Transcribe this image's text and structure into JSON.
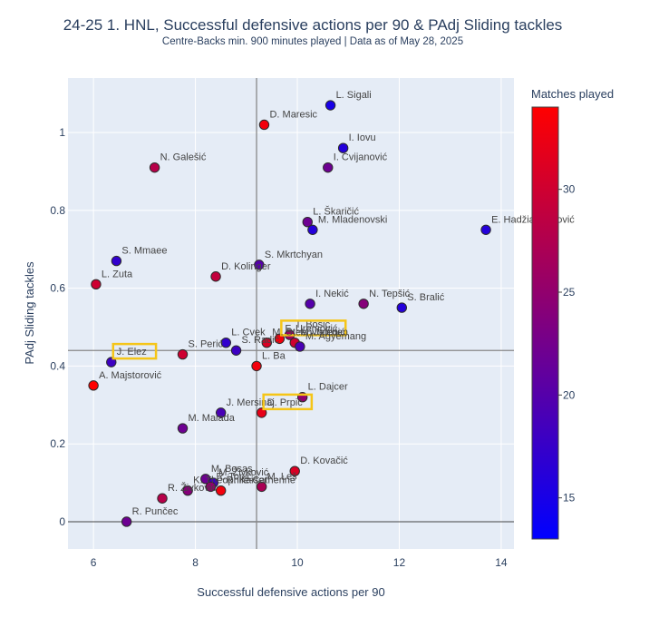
{
  "chart_data": {
    "type": "scatter",
    "title": "24-25 1. HNL, Successful defensive actions per 90 & PAdj Sliding tackles",
    "subtitle": "Centre-Backs min. 900 minutes played | Data as of May 28, 2025",
    "xlabel": "Successful defensive actions per 90",
    "ylabel": "PAdj Sliding tackles",
    "xlim": [
      5.5,
      14.25
    ],
    "ylim": [
      -0.07,
      1.14
    ],
    "x_ticks": [
      6,
      8,
      10,
      12,
      14
    ],
    "y_ticks": [
      0,
      0.2,
      0.4,
      0.6,
      0.8,
      1
    ],
    "reference_lines": {
      "x": 9.2,
      "y": 0.44
    },
    "grid": true,
    "colorbar": {
      "title": "Matches played",
      "min": 13,
      "max": 34,
      "ticks": [
        15,
        20,
        25,
        30
      ],
      "colors": {
        "low": "#0000ff",
        "high": "#ff0000"
      }
    },
    "highlight_color": "#f5c518",
    "points": [
      {
        "name": "L. Sigali",
        "x": 10.65,
        "y": 1.07,
        "matches": 15
      },
      {
        "name": "D. Maresic",
        "x": 9.35,
        "y": 1.02,
        "matches": 33
      },
      {
        "name": "I. Iovu",
        "x": 10.9,
        "y": 0.96,
        "matches": 16
      },
      {
        "name": "I. Cvijanović",
        "x": 10.6,
        "y": 0.91,
        "matches": 22
      },
      {
        "name": "N. Galešić",
        "x": 7.2,
        "y": 0.91,
        "matches": 28
      },
      {
        "name": "L. Škaričić",
        "x": 10.2,
        "y": 0.77,
        "matches": 22
      },
      {
        "name": "M. Mladenovski",
        "x": 10.3,
        "y": 0.75,
        "matches": 16
      },
      {
        "name": "E. Hadžiahmetović",
        "x": 13.7,
        "y": 0.75,
        "matches": 16
      },
      {
        "name": "S. Mmaee",
        "x": 6.45,
        "y": 0.67,
        "matches": 17
      },
      {
        "name": "S. Mkrtchyan",
        "x": 9.25,
        "y": 0.66,
        "matches": 20
      },
      {
        "name": "D. Kolinger",
        "x": 8.4,
        "y": 0.63,
        "matches": 29
      },
      {
        "name": "L. Zuta",
        "x": 6.05,
        "y": 0.61,
        "matches": 30
      },
      {
        "name": "I. Nekić",
        "x": 10.25,
        "y": 0.56,
        "matches": 20
      },
      {
        "name": "N. Tepšić",
        "x": 11.3,
        "y": 0.56,
        "matches": 24
      },
      {
        "name": "S. Bralić",
        "x": 12.05,
        "y": 0.55,
        "matches": 16
      },
      {
        "name": "T. Bošić",
        "x": 9.85,
        "y": 0.48,
        "matches": 26
      },
      {
        "name": "F. Uremović",
        "x": 9.65,
        "y": 0.47,
        "matches": 33,
        "highlight": true
      },
      {
        "name": "M. Jelenić",
        "x": 9.95,
        "y": 0.46,
        "matches": 30
      },
      {
        "name": "L. Cvek",
        "x": 8.6,
        "y": 0.46,
        "matches": 17
      },
      {
        "name": "M. Steenvoorden",
        "x": 9.4,
        "y": 0.46,
        "matches": 31
      },
      {
        "name": "S. Perić",
        "x": 7.75,
        "y": 0.43,
        "matches": 30
      },
      {
        "name": "S. Radić",
        "x": 8.8,
        "y": 0.44,
        "matches": 18
      },
      {
        "name": "M. Agyemang",
        "x": 10.05,
        "y": 0.45,
        "matches": 19
      },
      {
        "name": "J. Elez",
        "x": 6.35,
        "y": 0.41,
        "matches": 18,
        "highlight": true
      },
      {
        "name": "L. Ba",
        "x": 9.2,
        "y": 0.4,
        "matches": 33
      },
      {
        "name": "A. Majstorović",
        "x": 6.0,
        "y": 0.35,
        "matches": 34
      },
      {
        "name": "L. Dajcer",
        "x": 10.1,
        "y": 0.32,
        "matches": 25
      },
      {
        "name": "J. Mersinaj",
        "x": 8.5,
        "y": 0.28,
        "matches": 19
      },
      {
        "name": "D. Prpić",
        "x": 9.3,
        "y": 0.28,
        "matches": 32,
        "highlight": true
      },
      {
        "name": "M. Malada",
        "x": 7.75,
        "y": 0.24,
        "matches": 22
      },
      {
        "name": "D. Kovačić",
        "x": 9.95,
        "y": 0.13,
        "matches": 31
      },
      {
        "name": "M. Bosas",
        "x": 8.2,
        "y": 0.11,
        "matches": 22
      },
      {
        "name": "M. Živković",
        "x": 8.35,
        "y": 0.1,
        "matches": 18
      },
      {
        "name": "R. Topić",
        "x": 8.3,
        "y": 0.09,
        "matches": 25
      },
      {
        "name": "R. Kaiser",
        "x": 8.5,
        "y": 0.08,
        "matches": 33
      },
      {
        "name": "M. Leš",
        "x": 9.3,
        "y": 0.09,
        "matches": 27
      },
      {
        "name": "K. Theophile-Catherine",
        "x": 7.85,
        "y": 0.08,
        "matches": 24
      },
      {
        "name": "R. Živković",
        "x": 7.35,
        "y": 0.06,
        "matches": 28
      },
      {
        "name": "R. Punčec",
        "x": 6.65,
        "y": 0.0,
        "matches": 22
      }
    ]
  }
}
